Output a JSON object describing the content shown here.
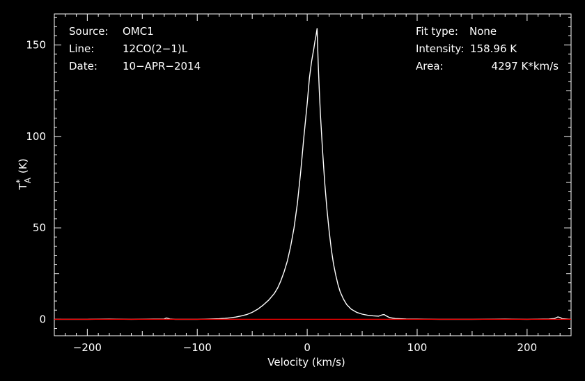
{
  "chart_data": {
    "type": "line",
    "xlabel": "Velocity (km/s)",
    "ylabel": "T*A (K)",
    "ylabel_main": "T",
    "ylabel_sup": "*",
    "ylabel_sub": "A",
    "ylabel_unit": "(K)",
    "xlim": [
      -230,
      240
    ],
    "ylim": [
      -9,
      167
    ],
    "xticks": [
      -200,
      -100,
      0,
      100,
      200
    ],
    "xtick_labels": [
      "−200",
      "−100",
      "0",
      "100",
      "200"
    ],
    "yticks": [
      0,
      50,
      100,
      150
    ],
    "ytick_labels": [
      "0",
      "50",
      "100",
      "150"
    ],
    "grid": false,
    "info_left": [
      {
        "key": "Source:",
        "value": "OMC1"
      },
      {
        "key": "Line:",
        "value": "12CO(2−1)L"
      },
      {
        "key": "Date:",
        "value": "10−APR−2014"
      }
    ],
    "info_right": [
      {
        "key": "Fit type:",
        "value": "None"
      },
      {
        "key": "Intensity:",
        "value": "158.96 K"
      },
      {
        "key": "Area:",
        "value": "4297 K*km/s"
      }
    ],
    "series": [
      {
        "color": "#ffffff",
        "x": [
          -230,
          -200,
          -180,
          -160,
          -140,
          -130,
          -128,
          -125,
          -120,
          -100,
          -90,
          -80,
          -75,
          -70,
          -65,
          -60,
          -55,
          -50,
          -45,
          -40,
          -35,
          -30,
          -27,
          -24,
          -21,
          -18,
          -15,
          -12,
          -9,
          -6,
          -3,
          0,
          2,
          4,
          6,
          7,
          8,
          9,
          10,
          11,
          12,
          14,
          16,
          18,
          20,
          22,
          24,
          26,
          28,
          30,
          33,
          36,
          40,
          45,
          50,
          55,
          60,
          65,
          68,
          70,
          72,
          75,
          80,
          90,
          100,
          120,
          150,
          180,
          200,
          220,
          225,
          228,
          230,
          232,
          240
        ],
        "y": [
          0,
          0,
          0.1,
          0,
          0.1,
          0.2,
          0.7,
          0.2,
          0,
          0,
          0.1,
          0.3,
          0.5,
          0.8,
          1.2,
          1.8,
          2.6,
          3.8,
          5.5,
          7.8,
          10.5,
          14,
          17,
          21,
          26,
          32,
          40,
          50,
          63,
          80,
          100,
          118,
          132,
          141,
          148,
          152,
          155,
          159,
          140,
          125,
          112,
          92,
          74,
          60,
          48,
          38,
          30,
          24,
          19,
          15,
          11,
          8,
          5.5,
          3.8,
          2.8,
          2.2,
          1.9,
          1.7,
          2.4,
          2.6,
          1.8,
          0.9,
          0.4,
          0.2,
          0.1,
          0,
          0,
          0.1,
          0,
          0.2,
          0.4,
          1.3,
          1.0,
          0.3,
          0
        ]
      },
      {
        "color": "#ff0000",
        "x": [
          -230,
          240
        ],
        "y": [
          0,
          0
        ]
      }
    ]
  }
}
